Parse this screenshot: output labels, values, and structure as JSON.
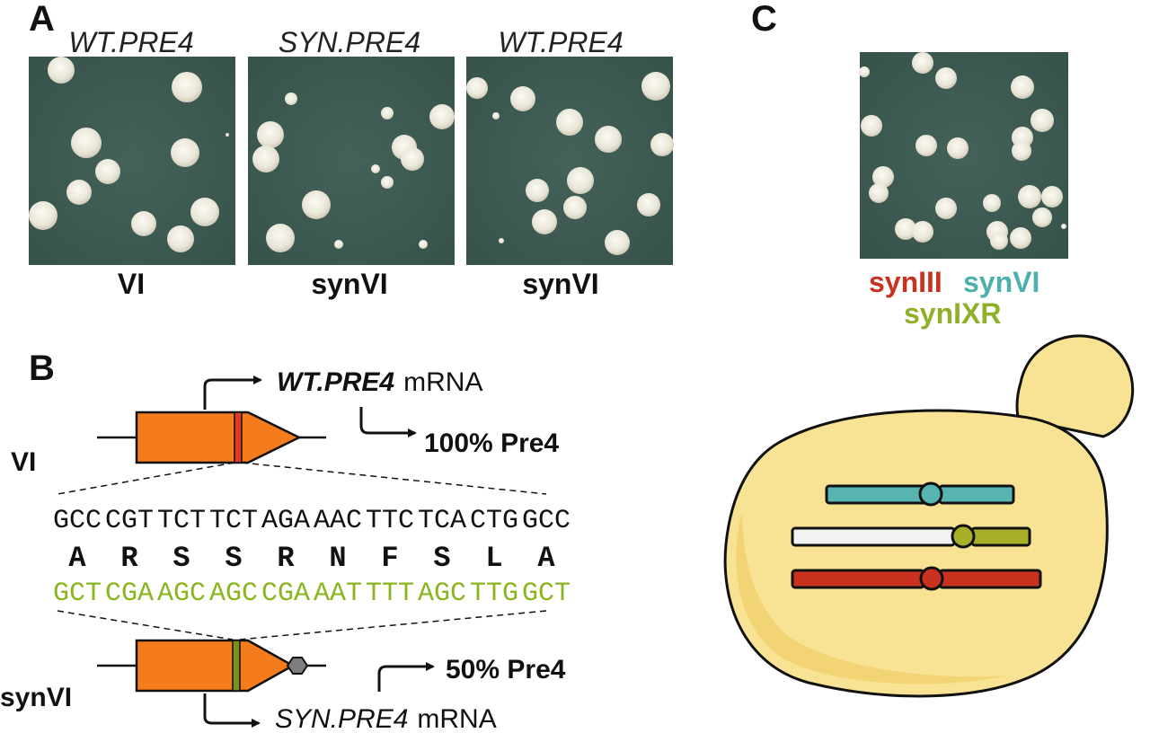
{
  "panel_a": {
    "letter": "A",
    "plates": [
      {
        "title": "WT.PRE4",
        "caption": "VI"
      },
      {
        "title": "SYN.PRE4",
        "caption": "synVI"
      },
      {
        "title": "WT.PRE4",
        "caption": "synVI"
      }
    ]
  },
  "panel_b": {
    "letter": "B",
    "row_top_label": "VI",
    "row_bottom_label": "synVI",
    "top_mrna_gene": "WT.PRE4",
    "top_mrna_suffix": "mRNA",
    "top_percent": "100% Pre4",
    "bottom_mrna_gene": "SYN.PRE4",
    "bottom_mrna_suffix": "mRNA",
    "bottom_percent": "50% Pre4",
    "wt_codons": [
      "GCC",
      "CGT",
      "TCT",
      "TCT",
      "AGA",
      "AAC",
      "TTC",
      "TCA",
      "CTG",
      "GCC"
    ],
    "amino_acids": [
      "A",
      "R",
      "S",
      "S",
      "R",
      "N",
      "F",
      "S",
      "L",
      "A"
    ],
    "syn_codons": [
      "GCT",
      "CGA",
      "AGC",
      "AGC",
      "CGA",
      "AAT",
      "TTT",
      "AGC",
      "TTG",
      "GCT"
    ]
  },
  "panel_c": {
    "letter": "C",
    "labels": [
      {
        "text": "synIII",
        "color": "#c8321e"
      },
      {
        "text": "synVI",
        "color": "#4eb0ac"
      },
      {
        "text": "synIXR",
        "color": "#8fb02a"
      }
    ]
  },
  "colors": {
    "plate_bg": "#3c5a52",
    "colony": "#e6e3d4",
    "gene_orange": "#f57c1c",
    "wt_codon": "#111111",
    "syn_codon": "#8ab51e",
    "cell_fill": "#f8e293",
    "cell_shadow": "#ecc95c",
    "chr_teal": "#58b4b0",
    "chr_white": "#f1f3f2",
    "chr_olive": "#a8b02a",
    "chr_red": "#c8321e"
  }
}
